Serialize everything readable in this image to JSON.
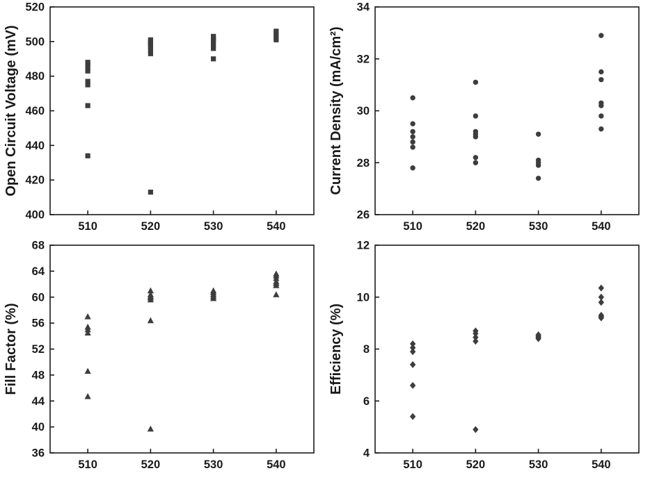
{
  "page": {
    "background": "#ffffff",
    "description": "Four-panel scatter figure of solar cell photovoltaic parameters versus temperature (510-540)"
  },
  "style": {
    "axis_color": "#1a1a1a",
    "marker_color": "#3d3d3d",
    "tick_font_size": 16.5,
    "label_font_size": 20,
    "axis_stroke_width": 1.6,
    "tick_length": 6
  },
  "chart_data": [
    {
      "type": "scatter",
      "marker": "square",
      "title": "",
      "xlabel": "",
      "ylabel": "Open Circuit Voltage (mV)",
      "grid": false,
      "legend": "none",
      "xlim": [
        504,
        546
      ],
      "ylim": [
        400,
        520
      ],
      "xticks": [
        510,
        520,
        530,
        540
      ],
      "yticks": [
        400,
        420,
        440,
        460,
        480,
        500,
        520
      ],
      "series": [
        {
          "x": 510,
          "y": [
            434,
            463,
            475,
            477,
            483,
            485,
            487,
            488
          ]
        },
        {
          "x": 520,
          "y": [
            413,
            493,
            495,
            497,
            498,
            499,
            500,
            501
          ]
        },
        {
          "x": 530,
          "y": [
            490,
            496,
            498,
            500,
            501,
            502,
            503
          ]
        },
        {
          "x": 540,
          "y": [
            501,
            502,
            503,
            504,
            505,
            506
          ]
        }
      ]
    },
    {
      "type": "scatter",
      "marker": "circle",
      "title": "",
      "xlabel": "",
      "ylabel": "Current Density (mA/cm²)",
      "grid": false,
      "legend": "none",
      "xlim": [
        504,
        546
      ],
      "ylim": [
        26,
        34
      ],
      "xticks": [
        510,
        520,
        530,
        540
      ],
      "yticks": [
        26,
        28,
        30,
        32,
        34
      ],
      "series": [
        {
          "x": 510,
          "y": [
            27.8,
            28.6,
            28.8,
            29.0,
            29.2,
            29.5,
            30.5
          ]
        },
        {
          "x": 520,
          "y": [
            28.0,
            28.2,
            29.0,
            29.1,
            29.2,
            29.8,
            31.1
          ]
        },
        {
          "x": 530,
          "y": [
            27.4,
            27.9,
            28.0,
            28.1,
            29.1
          ]
        },
        {
          "x": 540,
          "y": [
            29.3,
            29.8,
            30.2,
            30.3,
            31.2,
            31.5,
            32.9
          ]
        }
      ]
    },
    {
      "type": "scatter",
      "marker": "triangle",
      "title": "",
      "xlabel": "",
      "ylabel": "Fill Factor (%)",
      "grid": false,
      "legend": "none",
      "xlim": [
        504,
        546
      ],
      "ylim": [
        36,
        68
      ],
      "xticks": [
        510,
        520,
        530,
        540
      ],
      "yticks": [
        36,
        40,
        44,
        48,
        52,
        56,
        60,
        64,
        68
      ],
      "series": [
        {
          "x": 510,
          "y": [
            44.7,
            48.6,
            54.5,
            55.0,
            55.4,
            57.0
          ]
        },
        {
          "x": 520,
          "y": [
            39.7,
            56.4,
            59.6,
            59.9,
            60.1,
            60.4,
            61.0
          ]
        },
        {
          "x": 530,
          "y": [
            59.8,
            60.1,
            60.4,
            60.7,
            61.0
          ]
        },
        {
          "x": 540,
          "y": [
            60.4,
            61.8,
            62.1,
            62.4,
            62.9,
            63.3,
            63.6
          ]
        }
      ]
    },
    {
      "type": "scatter",
      "marker": "diamond",
      "title": "",
      "xlabel": "",
      "ylabel": "Efficiency (%)",
      "grid": false,
      "legend": "none",
      "xlim": [
        504,
        546
      ],
      "ylim": [
        4,
        12
      ],
      "xticks": [
        510,
        520,
        530,
        540
      ],
      "yticks": [
        4,
        6,
        8,
        10,
        12
      ],
      "series": [
        {
          "x": 510,
          "y": [
            5.4,
            6.6,
            7.4,
            7.9,
            8.05,
            8.2
          ]
        },
        {
          "x": 520,
          "y": [
            4.9,
            8.3,
            8.45,
            8.6,
            8.7
          ]
        },
        {
          "x": 530,
          "y": [
            8.4,
            8.45,
            8.5,
            8.55
          ]
        },
        {
          "x": 540,
          "y": [
            9.2,
            9.25,
            9.3,
            9.8,
            10.0,
            10.35
          ]
        }
      ]
    }
  ]
}
